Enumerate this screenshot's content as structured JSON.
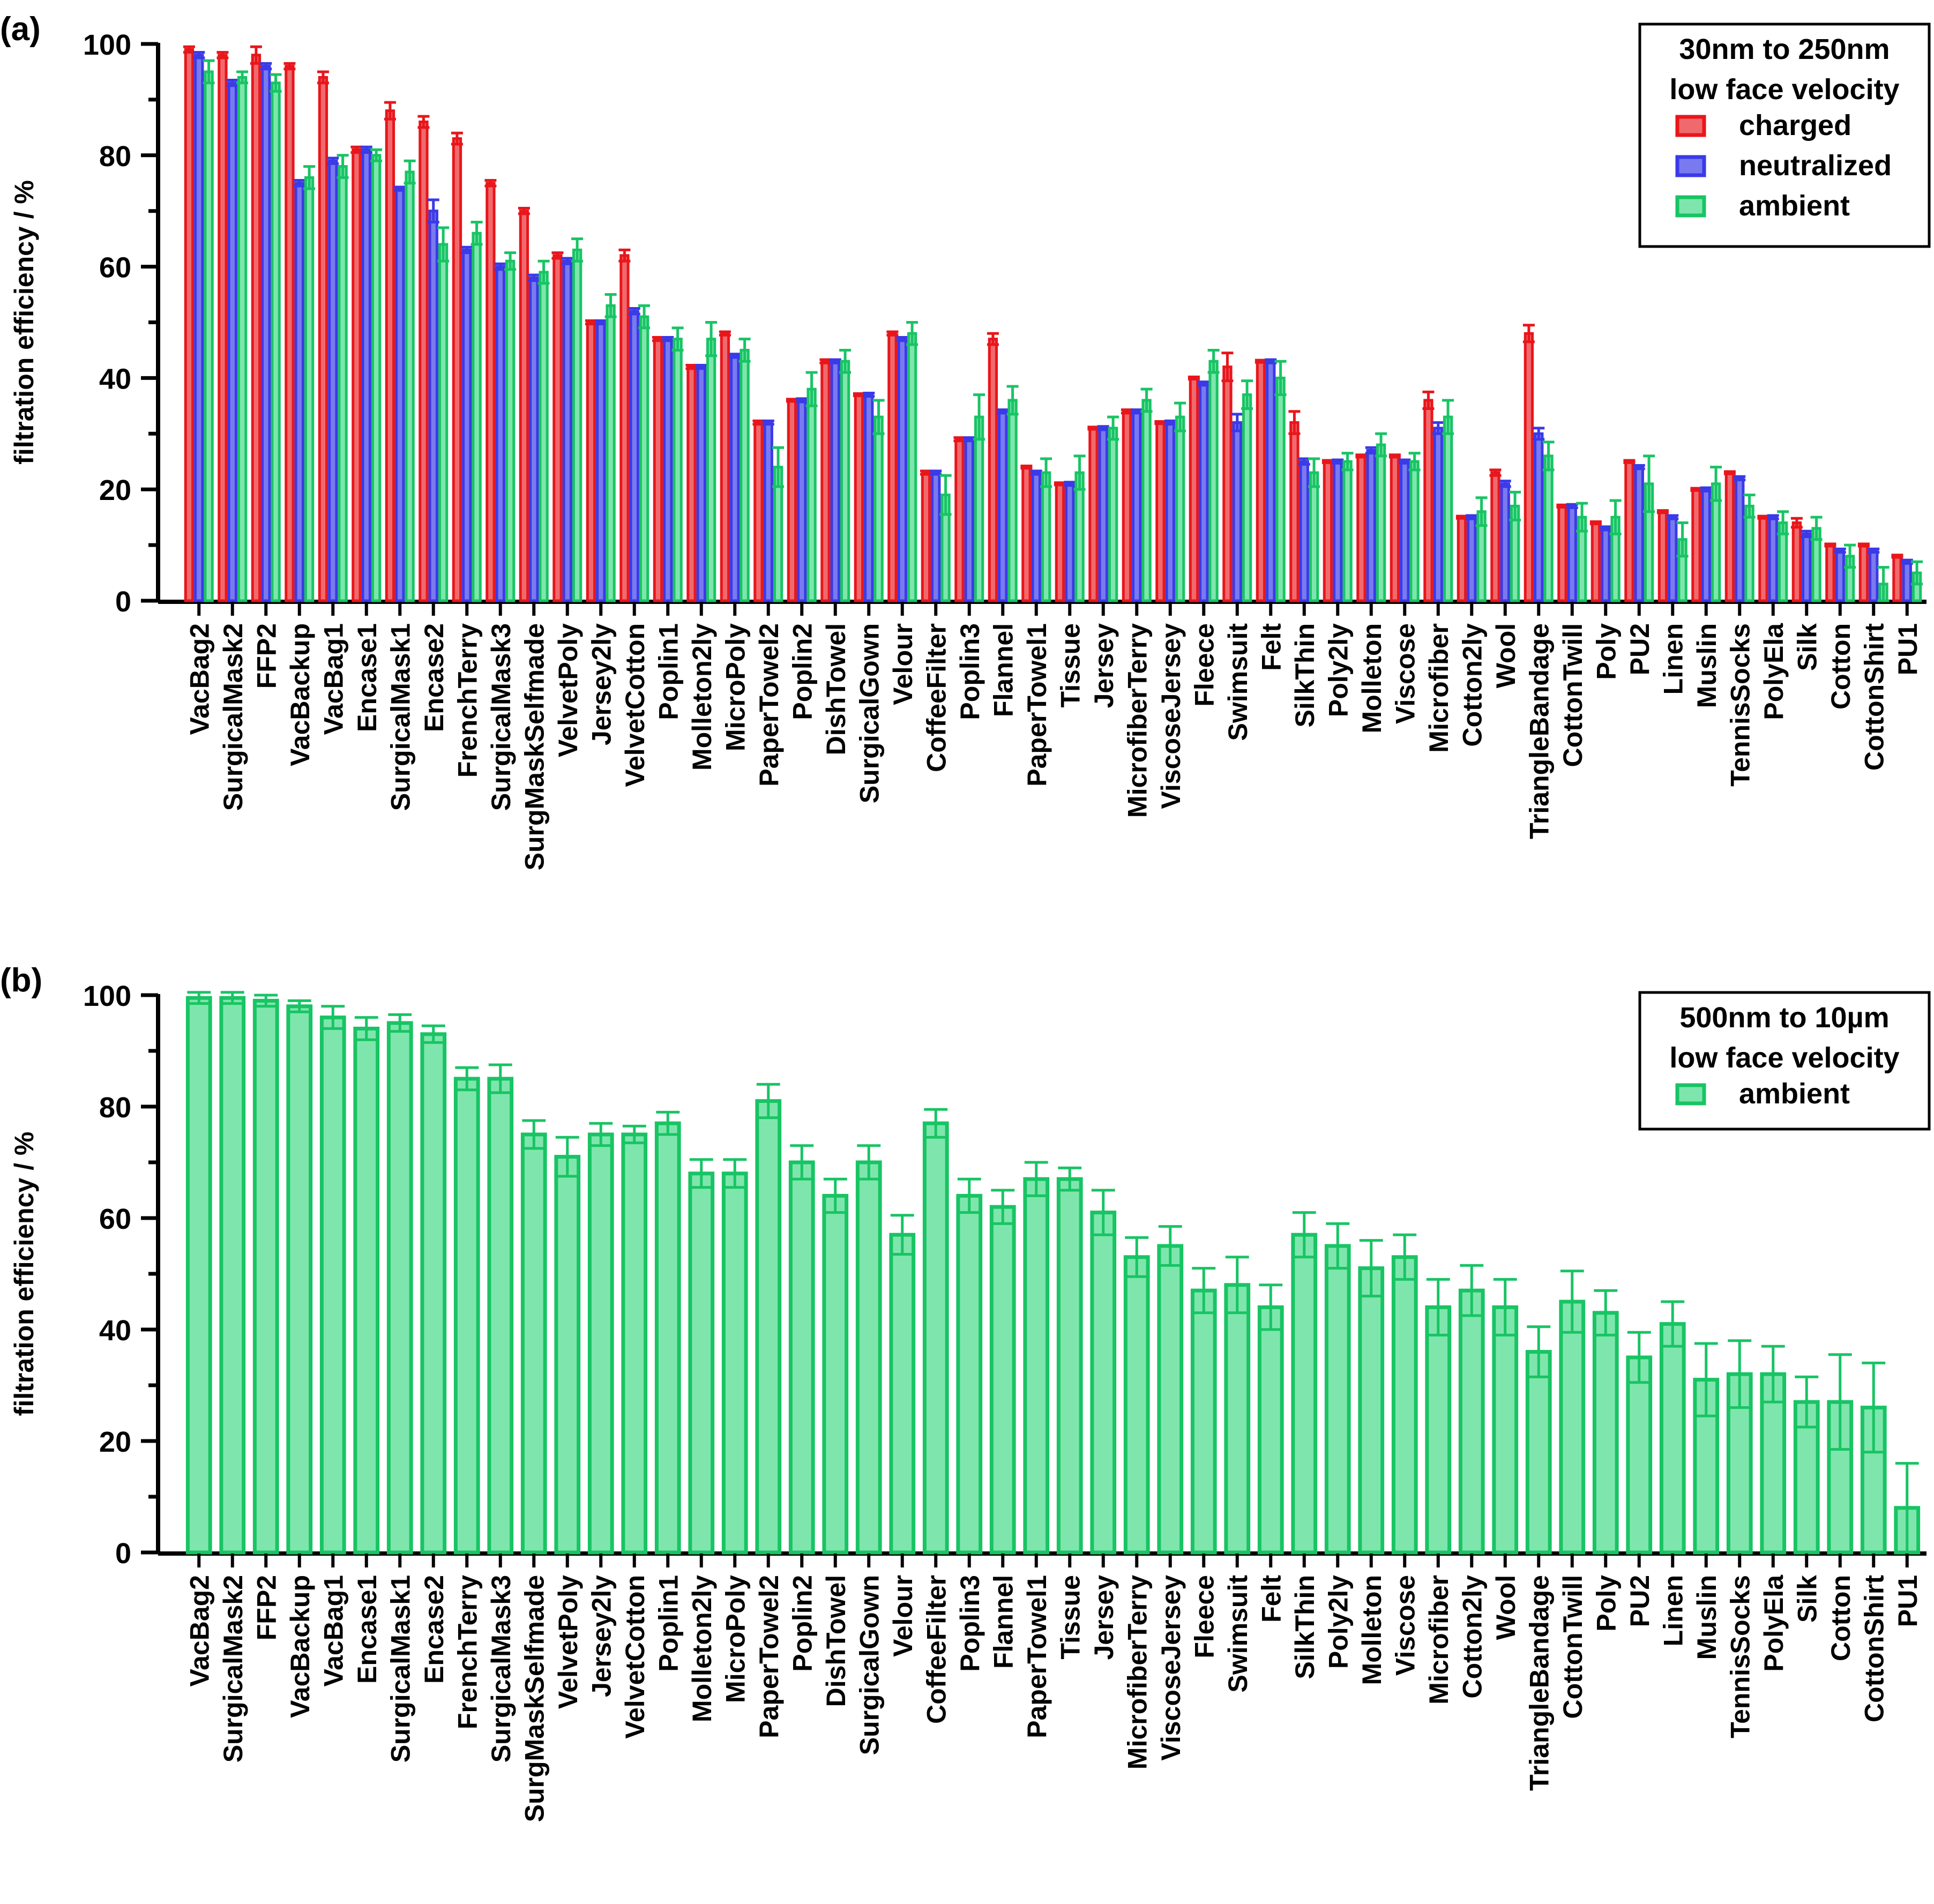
{
  "colors": {
    "charged_edge": "#e8161b",
    "charged_fill": "#f06a6d",
    "neutralized_edge": "#3a3ae8",
    "neutralized_fill": "#7a7af0",
    "ambient_edge": "#18c464",
    "ambient_fill": "#7ee6ac",
    "axis": "#000000"
  },
  "chart_data": [
    {
      "panel_label": "(a)",
      "type": "bar",
      "ylabel": "filtration efficiency / %",
      "ylim": [
        0,
        100
      ],
      "yticks": [
        "0",
        "20",
        "40",
        "60",
        "80",
        "100"
      ],
      "legend": {
        "title_lines": [
          "30nm to 250nm",
          "low face velocity"
        ],
        "placement": "top-right"
      },
      "categories": [
        "VacBag2",
        "SurgicalMask2",
        "FFP2",
        "VacBackup",
        "VacBag1",
        "Encase1",
        "SurgicalMask1",
        "Encase2",
        "FrenchTerry",
        "SurgicalMask3",
        "SurgMaskSelfmade",
        "VelvetPoly",
        "Jersey2ly",
        "VelvetCotton",
        "Poplin1",
        "Molleton2ly",
        "MicroPoly",
        "PaperTowel2",
        "Poplin2",
        "DishTowel",
        "SurgicalGown",
        "Velour",
        "CoffeeFilter",
        "Poplin3",
        "Flannel",
        "PaperTowel1",
        "Tissue",
        "Jersey",
        "MicrofiberTerry",
        "ViscoseJersey",
        "Fleece",
        "Swimsuit",
        "Felt",
        "SilkThin",
        "Poly2ly",
        "Molleton",
        "Viscose",
        "Microfiber",
        "Cotton2ly",
        "Wool",
        "TriangleBandage",
        "CottonTwill",
        "Poly",
        "PU2",
        "Linen",
        "Muslin",
        "TennisSocks",
        "PolyEla",
        "Silk",
        "Cotton",
        "CottonShirt",
        "PU1"
      ],
      "series": [
        {
          "name": "charged",
          "color_key": "charged",
          "values": [
            99,
            98,
            98,
            96,
            94,
            81,
            88,
            86,
            83,
            75,
            70,
            62,
            50,
            62,
            47,
            42,
            48,
            32,
            36,
            43,
            37,
            48,
            23,
            29,
            47,
            24,
            21,
            31,
            34,
            32,
            40,
            42,
            43,
            32,
            25,
            26,
            26,
            36,
            15,
            23,
            48,
            17,
            14,
            25,
            16,
            20,
            23,
            15,
            14,
            10,
            10,
            8
          ],
          "errors": [
            0.5,
            0.5,
            1.5,
            0.5,
            1,
            0.5,
            1.5,
            1,
            1,
            0.5,
            0.5,
            0.5,
            0.3,
            1,
            0.3,
            0.3,
            0.3,
            0.3,
            0.2,
            0.3,
            0.2,
            0.3,
            0.3,
            0.3,
            1,
            0.2,
            0.2,
            0.2,
            0.3,
            0.2,
            0.2,
            2.5,
            0.2,
            2,
            0.2,
            0.2,
            0.2,
            1.5,
            0.2,
            0.5,
            1.5,
            0.2,
            0.2,
            0.2,
            0.2,
            0.2,
            0.2,
            0.2,
            0.8,
            0.2,
            0.2,
            0.2
          ]
        },
        {
          "name": "neutralized",
          "color_key": "neutralized",
          "values": [
            98,
            93,
            96,
            75,
            79,
            81,
            74,
            70,
            63,
            60,
            58,
            61,
            50,
            52,
            47,
            42,
            44,
            32,
            36,
            43,
            37,
            47,
            23,
            29,
            34,
            23,
            21,
            31,
            34,
            32,
            39,
            32,
            43,
            25,
            25,
            27,
            25,
            31,
            15,
            21,
            30,
            17,
            13,
            24,
            15,
            20,
            22,
            15,
            12,
            9,
            9,
            7
          ],
          "errors": [
            0.5,
            0.5,
            0.5,
            0.5,
            0.5,
            0.5,
            0.3,
            2,
            0.5,
            0.5,
            0.5,
            0.5,
            0.3,
            0.5,
            0.3,
            0.3,
            0.3,
            0.3,
            0.3,
            0.3,
            0.3,
            0.3,
            0.3,
            0.3,
            0.3,
            0.3,
            0.3,
            0.3,
            0.3,
            0.3,
            0.3,
            1.5,
            0.3,
            0.5,
            0.3,
            0.5,
            0.3,
            1,
            0.3,
            0.5,
            1,
            0.3,
            0.3,
            0.3,
            0.3,
            0.3,
            0.3,
            0.3,
            0.5,
            0.3,
            0.3,
            0.3
          ]
        },
        {
          "name": "ambient",
          "color_key": "ambient",
          "values": [
            95,
            94,
            93,
            76,
            78,
            80,
            77,
            64,
            66,
            61,
            59,
            63,
            53,
            51,
            47,
            47,
            45,
            24,
            38,
            43,
            33,
            48,
            19,
            33,
            36,
            23,
            23,
            31,
            36,
            33,
            43,
            37,
            40,
            23,
            25,
            28,
            25,
            33,
            16,
            17,
            26,
            15,
            15,
            21,
            11,
            21,
            17,
            14,
            13,
            8,
            3,
            5
          ],
          "errors": [
            2,
            1,
            1.5,
            2,
            2,
            1,
            2,
            3,
            2,
            1.5,
            2,
            2,
            2,
            2,
            2,
            3,
            2,
            3.5,
            3,
            2,
            3,
            2,
            3.5,
            4,
            2.5,
            2.5,
            3,
            2,
            2,
            2.5,
            2,
            2.5,
            3,
            2.5,
            1.5,
            2,
            1.5,
            3,
            2.5,
            2.5,
            2.5,
            2.5,
            3,
            5,
            3,
            3,
            2,
            2,
            2,
            2,
            3,
            2
          ]
        }
      ]
    },
    {
      "panel_label": "(b)",
      "type": "bar",
      "ylabel": "filtration efficiency / %",
      "ylim": [
        0,
        100
      ],
      "yticks": [
        "0",
        "20",
        "40",
        "60",
        "80",
        "100"
      ],
      "legend": {
        "title_lines": [
          "500nm to 10µm",
          "low face velocity"
        ],
        "placement": "top-right"
      },
      "categories": [
        "VacBag2",
        "SurgicalMask2",
        "FFP2",
        "VacBackup",
        "VacBag1",
        "Encase1",
        "SurgicalMask1",
        "Encase2",
        "FrenchTerry",
        "SurgicalMask3",
        "SurgMaskSelfmade",
        "VelvetPoly",
        "Jersey2ly",
        "VelvetCotton",
        "Poplin1",
        "Molleton2ly",
        "MicroPoly",
        "PaperTowel2",
        "Poplin2",
        "DishTowel",
        "SurgicalGown",
        "Velour",
        "CoffeeFilter",
        "Poplin3",
        "Flannel",
        "PaperTowel1",
        "Tissue",
        "Jersey",
        "MicrofiberTerry",
        "ViscoseJersey",
        "Fleece",
        "Swimsuit",
        "Felt",
        "SilkThin",
        "Poly2ly",
        "Molleton",
        "Viscose",
        "Microfiber",
        "Cotton2ly",
        "Wool",
        "TriangleBandage",
        "CottonTwill",
        "Poly",
        "PU2",
        "Linen",
        "Muslin",
        "TennisSocks",
        "PolyEla",
        "Silk",
        "Cotton",
        "CottonShirt",
        "PU1"
      ],
      "series": [
        {
          "name": "ambient",
          "color_key": "ambient",
          "values": [
            99.5,
            99.5,
            99,
            98,
            96,
            94,
            95,
            93,
            85,
            85,
            75,
            71,
            75,
            75,
            77,
            68,
            68,
            81,
            70,
            64,
            70,
            57,
            77,
            64,
            62,
            67,
            67,
            61,
            53,
            55,
            47,
            48,
            44,
            57,
            55,
            51,
            53,
            44,
            47,
            44,
            36,
            45,
            43,
            35,
            41,
            31,
            32,
            32,
            27,
            27,
            26,
            8
          ],
          "errors": [
            1,
            1,
            1,
            1,
            2,
            2,
            1.5,
            1.5,
            2,
            2.5,
            2.5,
            3.5,
            2,
            1.5,
            2,
            2.5,
            2.5,
            3,
            3,
            3,
            3,
            3.5,
            2.5,
            3,
            3,
            3,
            2,
            4,
            3.5,
            3.5,
            4,
            5,
            4,
            4,
            4,
            5,
            4,
            5,
            4.5,
            5,
            4.5,
            5.5,
            4,
            4.5,
            4,
            6.5,
            6,
            5,
            4.5,
            8.5,
            8,
            8
          ]
        }
      ]
    }
  ]
}
